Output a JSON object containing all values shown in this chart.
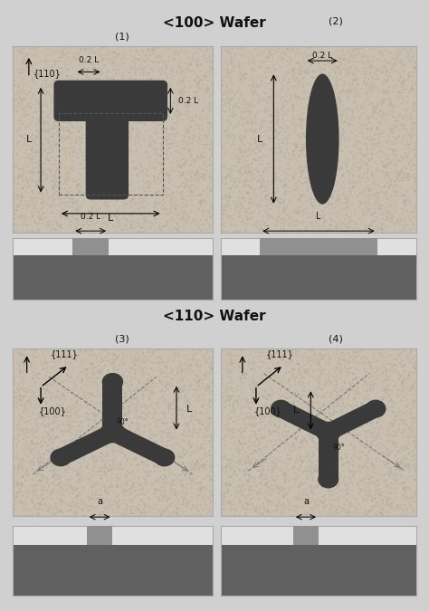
{
  "bg_color": "#d0d0d0",
  "panel_bg": "#c8bfb0",
  "dark_shape_color": "#3a3a3a",
  "title1": "<100> Wafer",
  "title2": "<110> Wafer",
  "label1": "(1)",
  "label2": "(2)",
  "label3": "(3)",
  "label4": "(4)",
  "text_color": "#111111",
  "border_color": "#aaaaaa",
  "dark_bar_color": "#606060",
  "bar_top_color": "#e0e0e0",
  "bar_notch_color": "#909090"
}
